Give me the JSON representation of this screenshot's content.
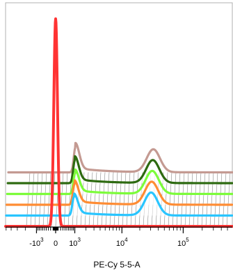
{
  "chart_data": {
    "type": "area",
    "style": "staggered offset histogram overlay (waterfall)",
    "xlabel": "PE-Cy 5-5-A",
    "ylabel": "",
    "title": "",
    "x_scale": "biexponential",
    "x_ticks": [
      {
        "value": -1000,
        "base": "-10",
        "exp": "3"
      },
      {
        "value": 0,
        "base": "0",
        "exp": ""
      },
      {
        "value": 1000,
        "base": "10",
        "exp": "3"
      },
      {
        "value": 10000,
        "base": "10",
        "exp": "4"
      },
      {
        "value": 100000,
        "base": "10",
        "exp": "5"
      }
    ],
    "grid": false,
    "legend": "none",
    "series": [
      {
        "color": "#ff3333",
        "order": 0,
        "peaks": [
          {
            "x": 0,
            "height": 1.0
          }
        ]
      },
      {
        "color": "#29c5ff",
        "order": 1,
        "peaks": [
          {
            "x": 900,
            "height": 0.09
          },
          {
            "x": 30000,
            "height": 0.11
          }
        ]
      },
      {
        "color": "#ff8c33",
        "order": 2,
        "peaks": [
          {
            "x": 900,
            "height": 0.1
          },
          {
            "x": 30000,
            "height": 0.11
          }
        ]
      },
      {
        "color": "#7cfc3a",
        "order": 3,
        "peaks": [
          {
            "x": 900,
            "height": 0.1
          },
          {
            "x": 30000,
            "height": 0.11
          }
        ]
      },
      {
        "color": "#2d6a10",
        "order": 4,
        "peaks": [
          {
            "x": 850,
            "height": 0.11
          },
          {
            "x": 30000,
            "height": 0.11
          }
        ]
      },
      {
        "color": "#c49a92",
        "order": 5,
        "peaks": [
          {
            "x": 850,
            "height": 0.12
          },
          {
            "x": 30000,
            "height": 0.11
          }
        ]
      }
    ]
  }
}
